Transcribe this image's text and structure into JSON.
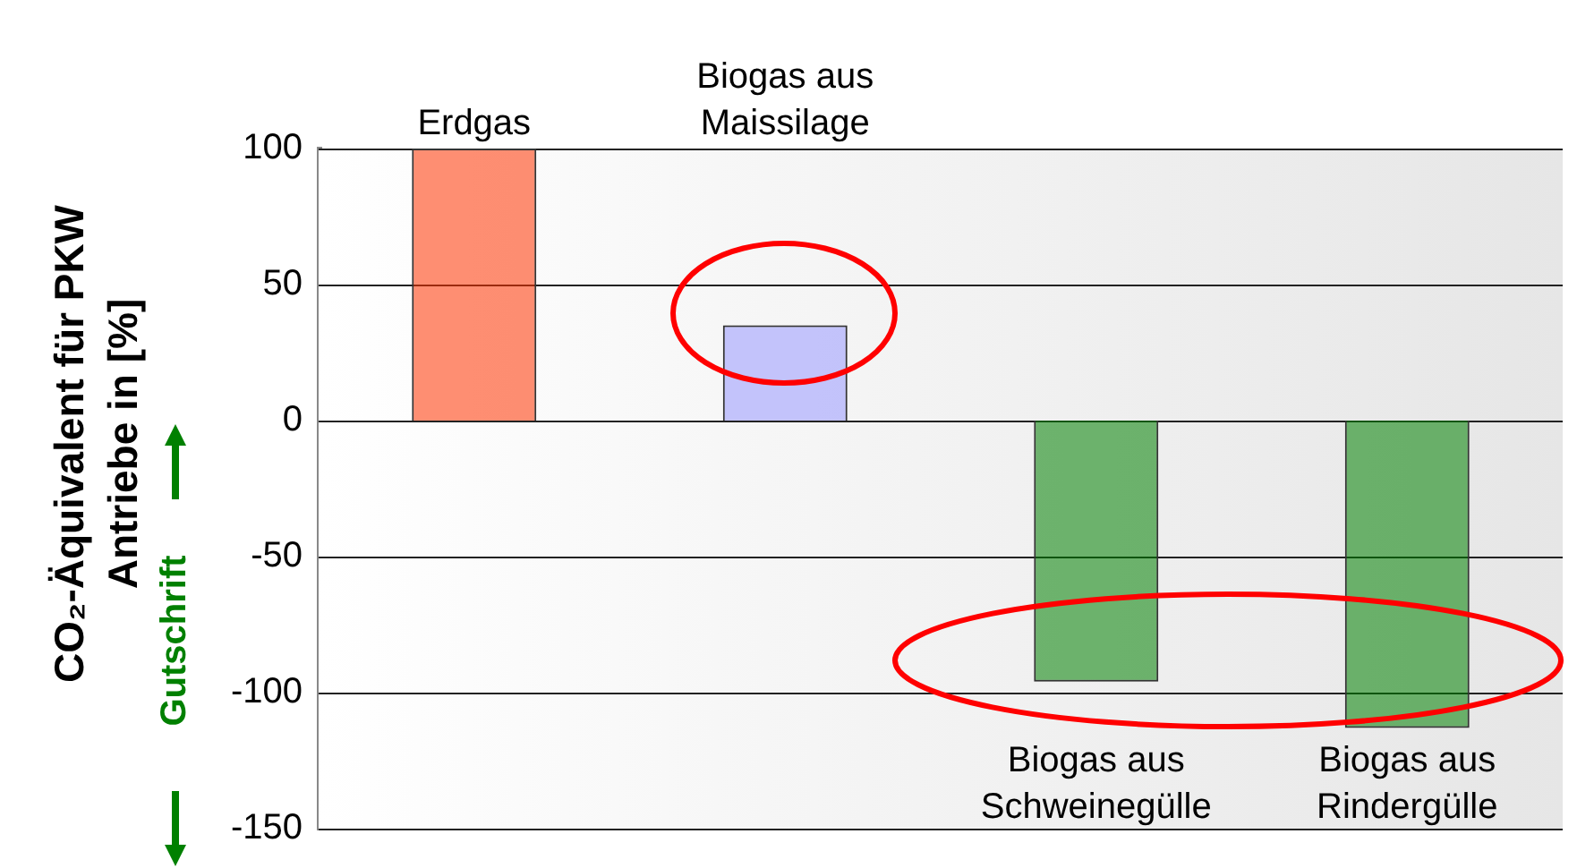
{
  "chart_data": {
    "type": "bar",
    "ylabel": "CO₂-Äquivalent für PKW Antriebe in [%]",
    "categories": [
      "Erdgas",
      "Biogas aus Maissilage",
      "Biogas aus Schweinegülle",
      "Biogas aus Rindergülle"
    ],
    "values": [
      100,
      35,
      -96,
      -113
    ],
    "colors": [
      "#ff3300",
      "#9999ff",
      "#008000",
      "#008000"
    ],
    "ylim": [
      -150,
      100
    ],
    "yticks": [
      -150,
      -100,
      -50,
      0,
      50,
      100
    ],
    "grid": "y",
    "legend": false,
    "annotations": [
      "Gutschrift"
    ]
  }
}
